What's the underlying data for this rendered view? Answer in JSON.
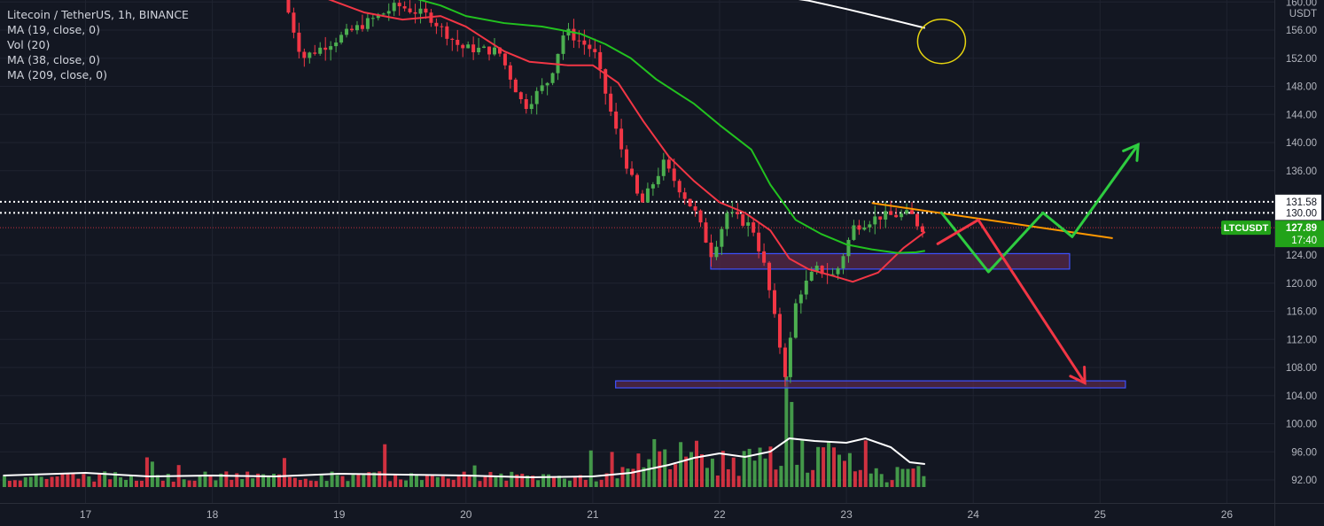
{
  "legend": {
    "symbol": "Litecoin / TetherUS, 1h, BINANCE",
    "indicators": [
      "MA (19, close, 0)",
      "Vol (20)",
      "MA (38, close, 0)",
      "MA (209, close, 0)"
    ]
  },
  "price_axis": {
    "currency": "USDT",
    "ticks": [
      "160.00",
      "156.00",
      "152.00",
      "148.00",
      "144.00",
      "140.00",
      "136.00",
      "124.00",
      "120.00",
      "116.00",
      "112.00",
      "108.00",
      "104.00",
      "100.00",
      "96.00",
      "92.00"
    ],
    "level_labels": [
      {
        "text": "131.58",
        "value": 131.58
      },
      {
        "text": "130.00",
        "value": 130.0
      }
    ],
    "current_price": {
      "symbol": "LTCUSDT",
      "price": "127.89",
      "countdown": "17:40",
      "value": 127.89
    }
  },
  "time_axis": {
    "ticks": [
      "17",
      "18",
      "19",
      "20",
      "21",
      "22",
      "23",
      "24",
      "25",
      "26"
    ]
  },
  "colors": {
    "background": "#131722",
    "up": "#26a69a",
    "candle_up": "#4caf50",
    "candle_down": "#f23645",
    "ma19": "#f23645",
    "ma38": "#22c21f",
    "ma209": "#ffffff",
    "trendline": "#ff9800",
    "zone_fill": "#5b2a4a",
    "zone_border": "#3f51ff",
    "projection_green": "#2ecc40",
    "projection_red": "#f23645",
    "circle": "#e6d40f"
  },
  "chart_data": {
    "type": "candlestick",
    "title": "Litecoin / TetherUS, 1h, BINANCE",
    "x_unit": "day of month (hourly candles)",
    "ylim": [
      89.5,
      161
    ],
    "xlim": [
      16.35,
      26.2
    ],
    "price_key_points": [
      {
        "x": 18.6,
        "y": 161
      },
      {
        "x": 18.75,
        "y": 152
      },
      {
        "x": 19.2,
        "y": 156.5
      },
      {
        "x": 19.5,
        "y": 159.5
      },
      {
        "x": 19.75,
        "y": 158
      },
      {
        "x": 20.0,
        "y": 153.5
      },
      {
        "x": 20.3,
        "y": 153
      },
      {
        "x": 20.5,
        "y": 145
      },
      {
        "x": 20.7,
        "y": 149
      },
      {
        "x": 20.82,
        "y": 156
      },
      {
        "x": 21.05,
        "y": 153
      },
      {
        "x": 21.25,
        "y": 140
      },
      {
        "x": 21.42,
        "y": 131
      },
      {
        "x": 21.6,
        "y": 137
      },
      {
        "x": 21.85,
        "y": 130
      },
      {
        "x": 21.98,
        "y": 124
      },
      {
        "x": 22.1,
        "y": 130
      },
      {
        "x": 22.3,
        "y": 128
      },
      {
        "x": 22.4,
        "y": 122
      },
      {
        "x": 22.56,
        "y": 107
      },
      {
        "x": 22.65,
        "y": 118
      },
      {
        "x": 22.8,
        "y": 122
      },
      {
        "x": 22.95,
        "y": 121
      },
      {
        "x": 23.1,
        "y": 128
      },
      {
        "x": 23.3,
        "y": 129.5
      },
      {
        "x": 23.55,
        "y": 129.8
      },
      {
        "x": 23.62,
        "y": 127.9
      }
    ],
    "series": [
      {
        "name": "MA (19, close, 0)",
        "points": [
          [
            18.6,
            161
          ],
          [
            18.9,
            160.5
          ],
          [
            19.2,
            158.5
          ],
          [
            19.5,
            157.5
          ],
          [
            19.8,
            158
          ],
          [
            20.0,
            156.5
          ],
          [
            20.3,
            153
          ],
          [
            20.5,
            151.5
          ],
          [
            20.8,
            151
          ],
          [
            21.0,
            151
          ],
          [
            21.2,
            148.5
          ],
          [
            21.4,
            143
          ],
          [
            21.6,
            138
          ],
          [
            21.8,
            134.5
          ],
          [
            22.0,
            131.5
          ],
          [
            22.2,
            130
          ],
          [
            22.4,
            127.5
          ],
          [
            22.55,
            123.5
          ],
          [
            22.7,
            122
          ],
          [
            22.9,
            121
          ],
          [
            23.05,
            120.2
          ],
          [
            23.25,
            121.5
          ],
          [
            23.45,
            125
          ],
          [
            23.62,
            127.3
          ]
        ]
      },
      {
        "name": "MA (38, close, 0)",
        "points": [
          [
            19.4,
            161
          ],
          [
            19.6,
            160.5
          ],
          [
            19.8,
            159.5
          ],
          [
            20.0,
            158
          ],
          [
            20.3,
            157
          ],
          [
            20.6,
            156.5
          ],
          [
            20.9,
            155.5
          ],
          [
            21.1,
            154
          ],
          [
            21.3,
            152
          ],
          [
            21.5,
            149
          ],
          [
            21.8,
            145.5
          ],
          [
            22.0,
            142.5
          ],
          [
            22.25,
            139
          ],
          [
            22.4,
            134
          ],
          [
            22.6,
            129
          ],
          [
            22.8,
            127
          ],
          [
            23.0,
            125.5
          ],
          [
            23.2,
            124.8
          ],
          [
            23.4,
            124.3
          ],
          [
            23.55,
            124.4
          ],
          [
            23.62,
            124.6
          ]
        ]
      },
      {
        "name": "MA (209, close, 0)",
        "points": [
          [
            22.4,
            161
          ],
          [
            22.7,
            160.2
          ],
          [
            23.0,
            159
          ],
          [
            23.35,
            157.5
          ],
          [
            23.62,
            156.3
          ]
        ]
      }
    ],
    "levels": [
      {
        "label": "131.58",
        "value": 131.58
      },
      {
        "label": "130.00",
        "value": 130.0
      },
      {
        "label": "LTCUSDT",
        "value": 127.89
      }
    ],
    "zones": [
      {
        "x": [
          21.93,
          24.76
        ],
        "y": [
          122.0,
          124.2
        ]
      },
      {
        "x": [
          21.18,
          25.2
        ],
        "y": [
          105.1,
          106.1
        ]
      }
    ],
    "trendline": {
      "from": [
        23.2,
        131.4
      ],
      "to": [
        25.1,
        126.4
      ]
    },
    "projections": [
      {
        "color": "green",
        "points": [
          [
            23.75,
            130.0
          ],
          [
            24.12,
            121.6
          ],
          [
            24.55,
            130.0
          ],
          [
            24.78,
            126.6
          ],
          [
            25.3,
            139.7
          ]
        ]
      },
      {
        "color": "red",
        "points": [
          [
            23.72,
            125.6
          ],
          [
            24.04,
            129.0
          ],
          [
            24.88,
            105.8
          ]
        ]
      }
    ],
    "annotation_circle": {
      "x": 23.75,
      "y": 154.4
    },
    "volume": {
      "name": "Vol (20)",
      "avg_points": [
        [
          16.35,
          0.13
        ],
        [
          17.0,
          0.16
        ],
        [
          17.5,
          0.12
        ],
        [
          18.0,
          0.13
        ],
        [
          18.5,
          0.12
        ],
        [
          19.0,
          0.15
        ],
        [
          19.5,
          0.14
        ],
        [
          20.0,
          0.13
        ],
        [
          20.5,
          0.11
        ],
        [
          21.0,
          0.12
        ],
        [
          21.3,
          0.16
        ],
        [
          21.6,
          0.25
        ],
        [
          21.8,
          0.33
        ],
        [
          22.0,
          0.38
        ],
        [
          22.2,
          0.34
        ],
        [
          22.4,
          0.4
        ],
        [
          22.55,
          0.55
        ],
        [
          22.75,
          0.52
        ],
        [
          23.0,
          0.5
        ],
        [
          23.15,
          0.55
        ],
        [
          23.35,
          0.45
        ],
        [
          23.5,
          0.28
        ],
        [
          23.62,
          0.26
        ]
      ]
    }
  }
}
